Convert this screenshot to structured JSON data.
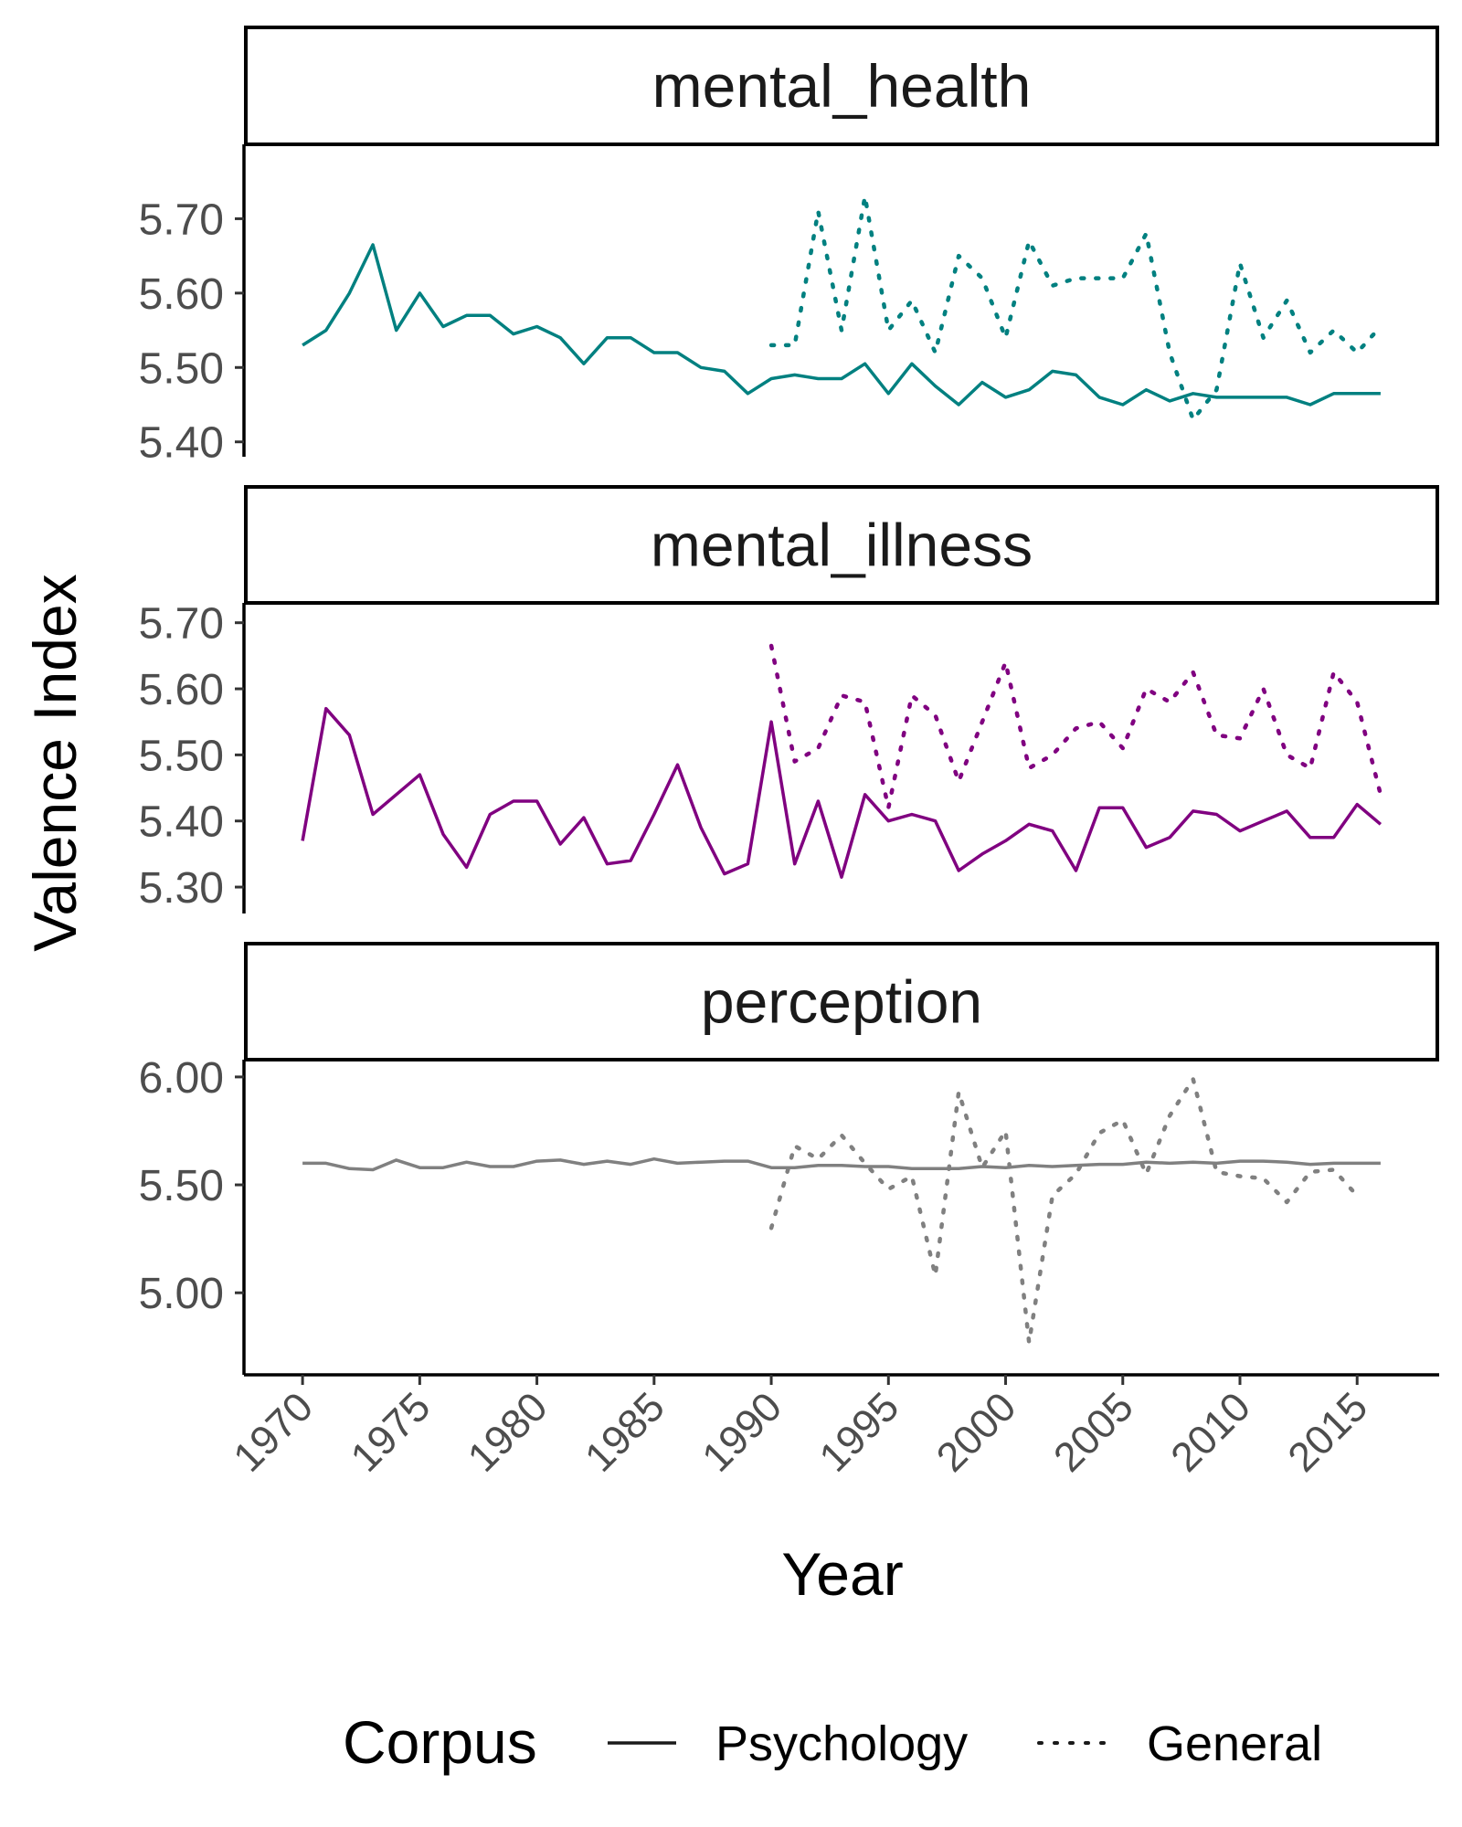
{
  "chart_data": {
    "type": "line",
    "xlabel": "Year",
    "ylabel": "Valence Index",
    "x_ticks": [
      1970,
      1975,
      1980,
      1985,
      1990,
      1995,
      2000,
      2005,
      2010,
      2015
    ],
    "xlim": [
      1967.5,
      2018.5
    ],
    "legend": {
      "title": "Corpus",
      "position": "bottom",
      "entries": [
        {
          "label": "Psychology",
          "linetype": "solid"
        },
        {
          "label": "General",
          "linetype": "dotted"
        }
      ]
    },
    "panels": [
      {
        "label": "mental_health",
        "color": "#008080",
        "ylim": [
          5.38,
          5.8
        ],
        "y_ticks": [
          "5.40",
          "5.50",
          "5.60",
          "5.70"
        ],
        "series": [
          {
            "name": "Psychology",
            "linetype": "solid",
            "x": [
              1970,
              1971,
              1972,
              1973,
              1974,
              1975,
              1976,
              1977,
              1978,
              1979,
              1980,
              1981,
              1982,
              1983,
              1984,
              1985,
              1986,
              1987,
              1988,
              1989,
              1990,
              1991,
              1992,
              1993,
              1994,
              1995,
              1996,
              1997,
              1998,
              1999,
              2000,
              2001,
              2002,
              2003,
              2004,
              2005,
              2006,
              2007,
              2008,
              2009,
              2010,
              2011,
              2012,
              2013,
              2014,
              2015,
              2016
            ],
            "values": [
              5.53,
              5.55,
              5.6,
              5.665,
              5.55,
              5.6,
              5.555,
              5.57,
              5.57,
              5.545,
              5.555,
              5.54,
              5.505,
              5.54,
              5.54,
              5.52,
              5.52,
              5.5,
              5.495,
              5.465,
              5.485,
              5.49,
              5.485,
              5.485,
              5.505,
              5.465,
              5.505,
              5.475,
              5.45,
              5.48,
              5.46,
              5.47,
              5.495,
              5.49,
              5.46,
              5.45,
              5.47,
              5.455,
              5.465,
              5.46,
              5.46,
              5.46,
              5.46,
              5.45,
              5.465,
              5.465,
              5.465
            ]
          },
          {
            "name": "General",
            "linetype": "dotted",
            "x": [
              1990,
              1991,
              1992,
              1993,
              1994,
              1995,
              1996,
              1997,
              1998,
              1999,
              2000,
              2001,
              2002,
              2003,
              2004,
              2005,
              2006,
              2007,
              2008,
              2009,
              2010,
              2011,
              2012,
              2013,
              2014,
              2015,
              2016
            ],
            "values": [
              5.53,
              5.53,
              5.71,
              5.55,
              5.73,
              5.55,
              5.59,
              5.52,
              5.65,
              5.62,
              5.54,
              5.67,
              5.61,
              5.62,
              5.62,
              5.62,
              5.68,
              5.52,
              5.43,
              5.47,
              5.64,
              5.54,
              5.59,
              5.52,
              5.55,
              5.52,
              5.555
            ]
          }
        ]
      },
      {
        "label": "mental_illness",
        "color": "#800080",
        "ylim": [
          5.26,
          5.73
        ],
        "y_ticks": [
          "5.30",
          "5.40",
          "5.50",
          "5.60",
          "5.70"
        ],
        "series": [
          {
            "name": "Psychology",
            "linetype": "solid",
            "x": [
              1970,
              1971,
              1972,
              1973,
              1974,
              1975,
              1976,
              1977,
              1978,
              1979,
              1980,
              1981,
              1982,
              1983,
              1984,
              1985,
              1986,
              1987,
              1988,
              1989,
              1990,
              1991,
              1992,
              1993,
              1994,
              1995,
              1996,
              1997,
              1998,
              1999,
              2000,
              2001,
              2002,
              2003,
              2004,
              2005,
              2006,
              2007,
              2008,
              2009,
              2010,
              2011,
              2012,
              2013,
              2014,
              2015,
              2016
            ],
            "values": [
              5.37,
              5.57,
              5.53,
              5.41,
              5.44,
              5.47,
              5.38,
              5.33,
              5.41,
              5.43,
              5.43,
              5.365,
              5.405,
              5.335,
              5.34,
              5.41,
              5.485,
              5.39,
              5.32,
              5.335,
              5.55,
              5.335,
              5.43,
              5.315,
              5.44,
              5.4,
              5.41,
              5.4,
              5.325,
              5.35,
              5.37,
              5.395,
              5.385,
              5.325,
              5.42,
              5.42,
              5.36,
              5.375,
              5.415,
              5.41,
              5.385,
              5.4,
              5.415,
              5.375,
              5.375,
              5.425,
              5.395
            ]
          },
          {
            "name": "General",
            "linetype": "dotted",
            "x": [
              1990,
              1991,
              1992,
              1993,
              1994,
              1995,
              1996,
              1997,
              1998,
              1999,
              2000,
              2001,
              2002,
              2003,
              2004,
              2005,
              2006,
              2007,
              2008,
              2009,
              2010,
              2011,
              2012,
              2013,
              2014,
              2015,
              2016
            ],
            "values": [
              5.665,
              5.49,
              5.51,
              5.59,
              5.58,
              5.42,
              5.59,
              5.56,
              5.46,
              5.55,
              5.64,
              5.48,
              5.5,
              5.54,
              5.55,
              5.51,
              5.6,
              5.58,
              5.625,
              5.53,
              5.525,
              5.6,
              5.5,
              5.48,
              5.625,
              5.58,
              5.44
            ]
          }
        ]
      },
      {
        "label": "perception",
        "color": "#808080",
        "ylim": [
          4.62,
          6.08
        ],
        "y_ticks": [
          "5.00",
          "5.50",
          "6.00"
        ],
        "series": [
          {
            "name": "Psychology",
            "linetype": "solid",
            "x": [
              1970,
              1971,
              1972,
              1973,
              1974,
              1975,
              1976,
              1977,
              1978,
              1979,
              1980,
              1981,
              1982,
              1983,
              1984,
              1985,
              1986,
              1987,
              1988,
              1989,
              1990,
              1991,
              1992,
              1993,
              1994,
              1995,
              1996,
              1997,
              1998,
              1999,
              2000,
              2001,
              2002,
              2003,
              2004,
              2005,
              2006,
              2007,
              2008,
              2009,
              2010,
              2011,
              2012,
              2013,
              2014,
              2015,
              2016
            ],
            "values": [
              5.6,
              5.6,
              5.575,
              5.57,
              5.615,
              5.58,
              5.58,
              5.605,
              5.585,
              5.585,
              5.61,
              5.615,
              5.595,
              5.61,
              5.595,
              5.62,
              5.6,
              5.605,
              5.61,
              5.61,
              5.58,
              5.58,
              5.59,
              5.59,
              5.585,
              5.585,
              5.575,
              5.575,
              5.575,
              5.585,
              5.58,
              5.59,
              5.585,
              5.59,
              5.595,
              5.595,
              5.605,
              5.6,
              5.605,
              5.6,
              5.61,
              5.61,
              5.605,
              5.595,
              5.6,
              5.6,
              5.6
            ]
          },
          {
            "name": "General",
            "linetype": "dotted",
            "x": [
              1990,
              1991,
              1992,
              1993,
              1994,
              1995,
              1996,
              1997,
              1998,
              1999,
              2000,
              2001,
              2002,
              2003,
              2004,
              2005,
              2006,
              2007,
              2008,
              2009,
              2010,
              2011,
              2012,
              2013,
              2014,
              2015
            ],
            "values": [
              5.3,
              5.68,
              5.62,
              5.73,
              5.6,
              5.48,
              5.54,
              5.08,
              5.93,
              5.58,
              5.75,
              4.77,
              5.45,
              5.55,
              5.74,
              5.8,
              5.55,
              5.82,
              5.99,
              5.56,
              5.54,
              5.53,
              5.42,
              5.56,
              5.57,
              5.45
            ]
          }
        ]
      }
    ]
  }
}
